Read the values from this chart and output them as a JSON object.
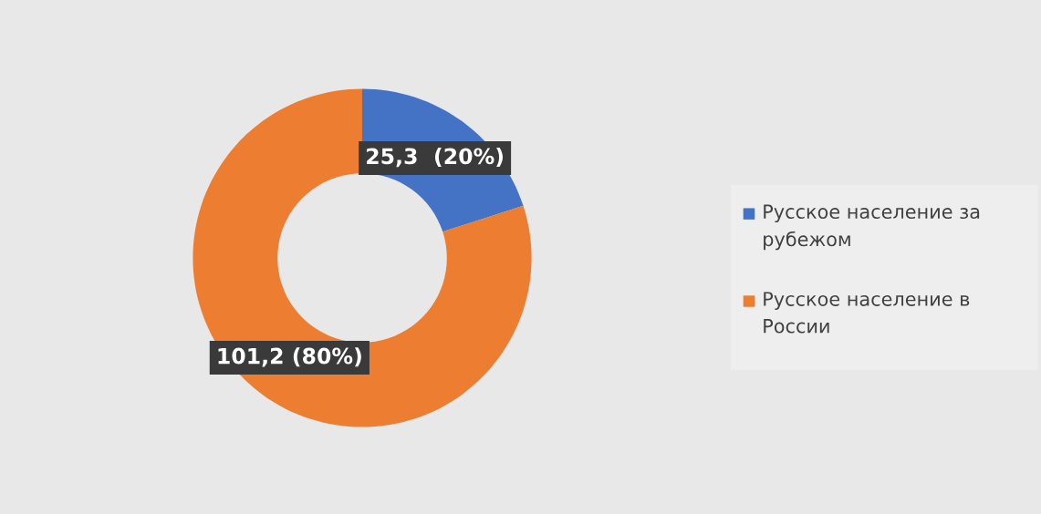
{
  "chart_data": {
    "type": "donut",
    "categories": [
      "Русское население за рубежом",
      "Русское население в России"
    ],
    "values": [
      25.3,
      101.2
    ],
    "colors": [
      "#4472c4",
      "#ed7d31"
    ],
    "value_labels": [
      "25,3  (20%)",
      "101,2 (80%)"
    ],
    "legend": "right"
  }
}
